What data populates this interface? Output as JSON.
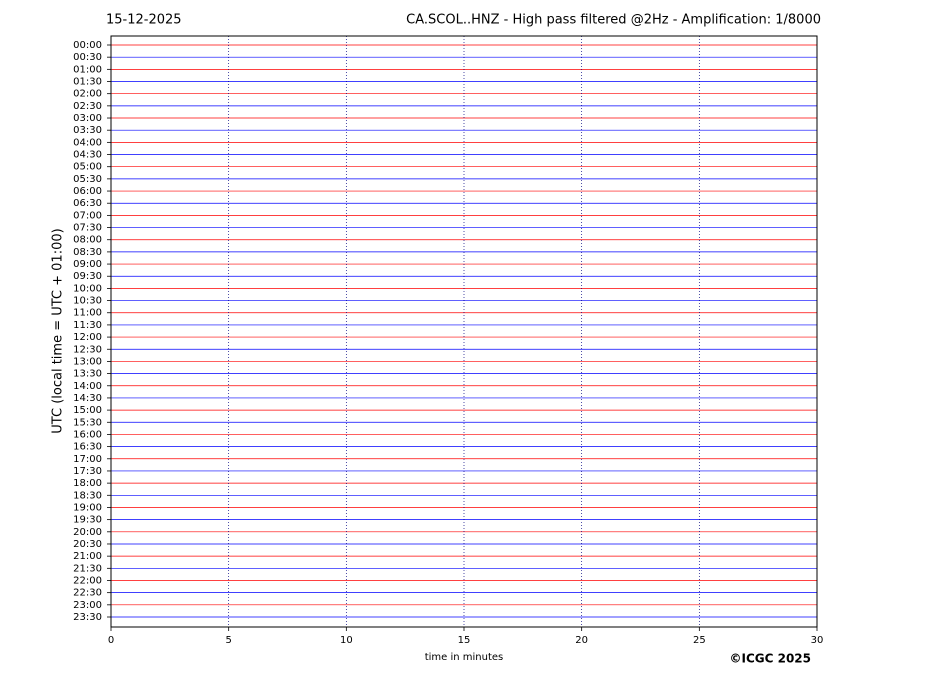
{
  "chart_data": {
    "type": "helicorder",
    "date": "15-12-2025",
    "title": "CA.SCOL..HNZ - High pass filtered @2Hz - Amplification: 1/8000",
    "y_label": "UTC (local time = UTC + 01:00)",
    "x_label": "time in minutes",
    "copyright": "©ICGC 2025",
    "categories": [
      "00:00",
      "00:30",
      "01:00",
      "01:30",
      "02:00",
      "02:30",
      "03:00",
      "03:30",
      "04:00",
      "04:30",
      "05:00",
      "05:30",
      "06:00",
      "06:30",
      "07:00",
      "07:30",
      "08:00",
      "08:30",
      "09:00",
      "09:30",
      "10:00",
      "10:30",
      "11:00",
      "11:30",
      "12:00",
      "12:30",
      "13:00",
      "13:30",
      "14:00",
      "14:30",
      "15:00",
      "15:30",
      "16:00",
      "16:30",
      "17:00",
      "17:30",
      "18:00",
      "18:30",
      "19:00",
      "19:30",
      "20:00",
      "20:30",
      "21:00",
      "21:30",
      "22:00",
      "22:30",
      "23:00",
      "23:30"
    ],
    "trace_colors": [
      "#ff0000",
      "#0000ff"
    ],
    "xlim": [
      0,
      30
    ],
    "xticks": [
      0,
      5,
      10,
      15,
      20,
      25,
      30
    ],
    "grid": true
  }
}
